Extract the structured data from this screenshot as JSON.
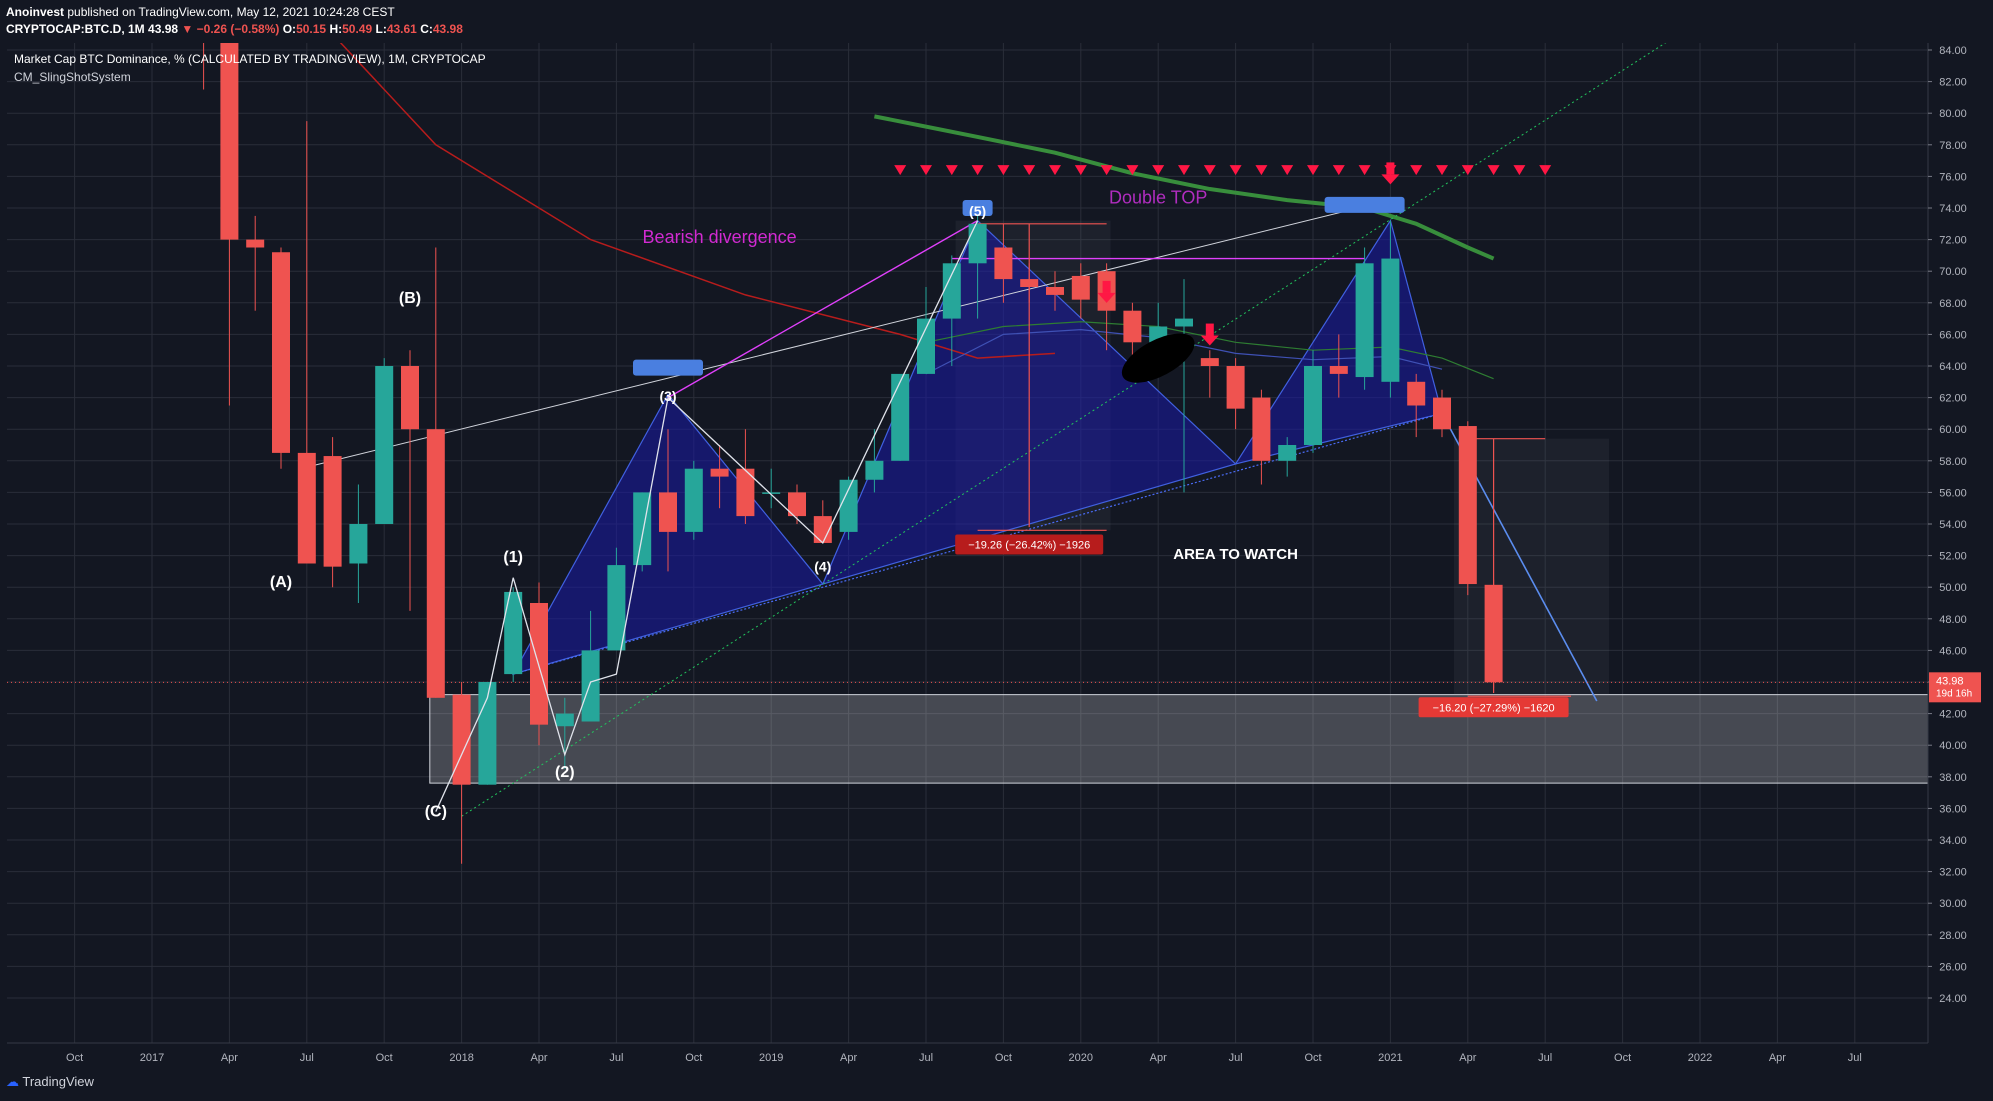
{
  "header": {
    "author": "Anoinvest",
    "published": "published on TradingView.com, May 12, 2021 10:24:28 CEST",
    "symbol": "CRYPTOCAP:BTC.D, 1M",
    "last": "43.98",
    "change": "−0.26 (−0.58%)",
    "o_label": "O:",
    "o": "50.15",
    "h_label": "H:",
    "h": "50.49",
    "l_label": "L:",
    "l": "43.61",
    "c_label": "C:",
    "c": "43.98"
  },
  "legend": {
    "title": "Market Cap BTC Dominance, % (CALCULATED BY TRADINGVIEW), 1M, CRYPTOCAP",
    "indicator": "CM_SlingShotSystem"
  },
  "price_tag": {
    "value": "43.98",
    "countdown": "19d 16h",
    "color": "#ef5350"
  },
  "footer": {
    "brand": "TradingView"
  },
  "annotations": {
    "wave_A": "(A)",
    "wave_B": "(B)",
    "wave_C": "(C)",
    "wave_1": "(1)",
    "wave_2": "(2)",
    "wave_3": "(3)",
    "wave_4": "(4)",
    "wave_5": "(5)",
    "bearish_divergence": "Bearish divergence",
    "double_top": "Double TOP",
    "area_to_watch": "AREA TO WATCH",
    "measure_1": "−19.26 (−26.42%) −1926",
    "measure_2": "−16.20 (−27.29%) −1620"
  },
  "chart_data": {
    "type": "candlestick",
    "title": "Market Cap BTC Dominance, % (CALCULATED BY TRADINGVIEW), 1M, CRYPTOCAP",
    "ylim": [
      22.5,
      85.2
    ],
    "y_ticks": [
      "84.00",
      "82.00",
      "80.00",
      "78.00",
      "76.00",
      "74.00",
      "72.00",
      "70.00",
      "68.00",
      "66.00",
      "64.00",
      "62.00",
      "60.00",
      "58.00",
      "56.00",
      "54.00",
      "52.00",
      "50.00",
      "48.00",
      "46.00",
      "44.00",
      "42.00",
      "40.00",
      "38.00",
      "36.00",
      "34.00",
      "32.00",
      "30.00",
      "28.00",
      "26.00",
      "24.00"
    ],
    "x_ticks": [
      "Oct",
      "2017",
      "Apr",
      "Jul",
      "Oct",
      "2018",
      "Apr",
      "Jul",
      "Oct",
      "2019",
      "Apr",
      "Jul",
      "Oct",
      "2020",
      "Apr",
      "Jul",
      "Oct",
      "2021",
      "Apr",
      "Jul",
      "Oct",
      "2022",
      "Apr",
      "Jul"
    ],
    "candles": [
      {
        "t": "2017-03",
        "o": 85,
        "h": 86,
        "l": 81.5,
        "c": 84.5
      },
      {
        "t": "2017-04",
        "o": 84.5,
        "h": 85,
        "l": 61.5,
        "c": 72
      },
      {
        "t": "2017-05",
        "o": 72,
        "h": 73.5,
        "l": 67.5,
        "c": 71.5
      },
      {
        "t": "2017-06",
        "o": 71.2,
        "h": 71.5,
        "l": 57.5,
        "c": 58.5
      },
      {
        "t": "2017-07",
        "o": 58.5,
        "h": 79.5,
        "l": 51.5,
        "c": 51.5
      },
      {
        "t": "2017-08",
        "o": 58.3,
        "h": 59.5,
        "l": 50,
        "c": 51.3
      },
      {
        "t": "2017-09",
        "o": 51.5,
        "h": 56.5,
        "l": 49,
        "c": 54
      },
      {
        "t": "2017-10",
        "o": 54,
        "h": 64.5,
        "l": 54,
        "c": 64
      },
      {
        "t": "2017-11",
        "o": 64,
        "h": 65,
        "l": 48.5,
        "c": 60
      },
      {
        "t": "2017-12",
        "o": 60,
        "h": 71.5,
        "l": 43,
        "c": 43
      },
      {
        "t": "2018-01",
        "o": 43.2,
        "h": 44,
        "l": 32.5,
        "c": 37.5
      },
      {
        "t": "2018-02",
        "o": 37.5,
        "h": 44,
        "l": 37.5,
        "c": 44
      },
      {
        "t": "2018-03",
        "o": 44.5,
        "h": 50,
        "l": 44,
        "c": 49.7
      },
      {
        "t": "2018-04",
        "o": 49,
        "h": 50.3,
        "l": 40,
        "c": 41.3
      },
      {
        "t": "2018-05",
        "o": 41.2,
        "h": 43,
        "l": 38.5,
        "c": 42
      },
      {
        "t": "2018-06",
        "o": 41.5,
        "h": 48.5,
        "l": 41.5,
        "c": 46
      },
      {
        "t": "2018-07",
        "o": 46,
        "h": 52.5,
        "l": 46,
        "c": 51.4
      },
      {
        "t": "2018-08",
        "o": 51.4,
        "h": 56,
        "l": 51,
        "c": 56
      },
      {
        "t": "2018-09",
        "o": 56,
        "h": 60,
        "l": 51,
        "c": 53.5
      },
      {
        "t": "2018-10",
        "o": 53.5,
        "h": 58,
        "l": 53,
        "c": 57.5
      },
      {
        "t": "2018-11",
        "o": 57.5,
        "h": 59,
        "l": 55,
        "c": 57
      },
      {
        "t": "2018-12",
        "o": 57.5,
        "h": 60,
        "l": 54,
        "c": 54.5
      },
      {
        "t": "2019-01",
        "o": 56,
        "h": 57.5,
        "l": 55,
        "c": 56
      },
      {
        "t": "2019-02",
        "o": 56,
        "h": 56.5,
        "l": 54,
        "c": 54.5
      },
      {
        "t": "2019-03",
        "o": 54.5,
        "h": 55.5,
        "l": 53,
        "c": 52.8
      },
      {
        "t": "2019-04",
        "o": 53.5,
        "h": 57,
        "l": 53,
        "c": 56.8
      },
      {
        "t": "2019-05",
        "o": 56.8,
        "h": 60,
        "l": 56,
        "c": 58
      },
      {
        "t": "2019-06",
        "o": 58,
        "h": 63,
        "l": 58,
        "c": 63.5
      },
      {
        "t": "2019-07",
        "o": 63.5,
        "h": 69,
        "l": 63.5,
        "c": 67
      },
      {
        "t": "2019-08",
        "o": 67,
        "h": 71,
        "l": 64,
        "c": 70.5
      },
      {
        "t": "2019-09",
        "o": 70.5,
        "h": 73.5,
        "l": 67,
        "c": 73
      },
      {
        "t": "2019-10",
        "o": 71.5,
        "h": 73,
        "l": 68,
        "c": 69.5
      },
      {
        "t": "2019-11",
        "o": 69.5,
        "h": 70.5,
        "l": 68,
        "c": 69
      },
      {
        "t": "2019-12",
        "o": 69,
        "h": 70,
        "l": 67.5,
        "c": 68.5
      },
      {
        "t": "2020-01",
        "o": 69.7,
        "h": 70.5,
        "l": 67,
        "c": 68.2
      },
      {
        "t": "2020-02",
        "o": 70,
        "h": 70.5,
        "l": 65,
        "c": 67.5
      },
      {
        "t": "2020-03",
        "o": 67.5,
        "h": 68,
        "l": 64.5,
        "c": 65.5
      },
      {
        "t": "2020-04",
        "o": 65.5,
        "h": 68,
        "l": 64.5,
        "c": 66.5
      },
      {
        "t": "2020-05",
        "o": 66.5,
        "h": 69.5,
        "l": 56,
        "c": 67
      },
      {
        "t": "2020-06",
        "o": 64.5,
        "h": 65,
        "l": 62,
        "c": 64
      },
      {
        "t": "2020-07",
        "o": 64,
        "h": 64.5,
        "l": 60,
        "c": 61.3
      },
      {
        "t": "2020-08",
        "o": 62,
        "h": 62.5,
        "l": 56.5,
        "c": 58
      },
      {
        "t": "2020-09",
        "o": 58,
        "h": 59.5,
        "l": 57,
        "c": 59
      },
      {
        "t": "2020-10",
        "o": 59,
        "h": 65,
        "l": 58.5,
        "c": 64
      },
      {
        "t": "2020-11",
        "o": 64,
        "h": 66,
        "l": 62,
        "c": 63.5
      },
      {
        "t": "2020-12",
        "o": 63.3,
        "h": 71.5,
        "l": 62.5,
        "c": 70.5
      },
      {
        "t": "2021-01",
        "o": 63,
        "h": 73.2,
        "l": 62,
        "c": 70.8
      },
      {
        "t": "2021-02",
        "o": 63,
        "h": 63.5,
        "l": 59.5,
        "c": 61.5
      },
      {
        "t": "2021-03",
        "o": 62,
        "h": 62.5,
        "l": 59.5,
        "c": 60
      },
      {
        "t": "2021-04",
        "o": 60.2,
        "h": 60.5,
        "l": 49.5,
        "c": 50.2
      },
      {
        "t": "2021-05",
        "o": 50.15,
        "h": 50.49,
        "l": 43.61,
        "c": 43.98
      }
    ]
  }
}
